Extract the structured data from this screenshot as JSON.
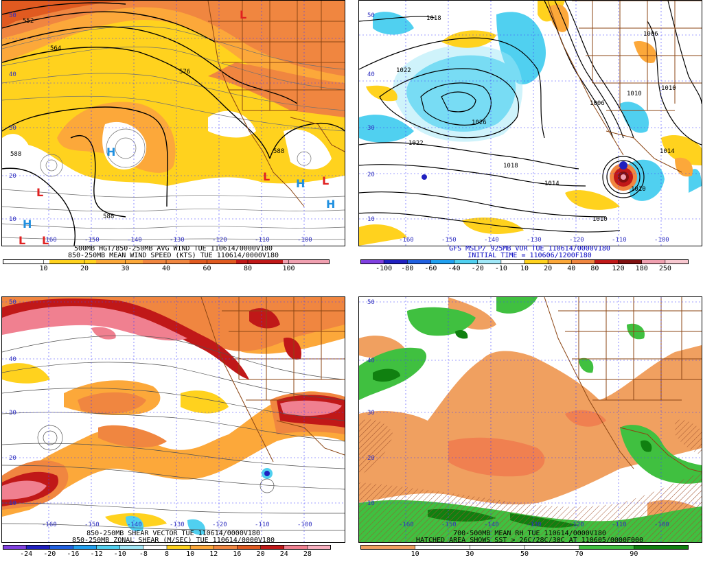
{
  "colors": {
    "grid": "#4040ff",
    "border": "#8b4513",
    "contour": "#000000"
  },
  "panels": [
    {
      "id": "tl",
      "lat_labels": [
        "50",
        "40",
        "30",
        "20",
        "10"
      ],
      "lon_labels": [
        "-160",
        "-150",
        "-140",
        "-130",
        "-120",
        "-110",
        "-100"
      ],
      "contour_labels": [
        "552",
        "564",
        "576",
        "588",
        "588",
        "588"
      ],
      "highs": [
        "H",
        "H",
        "H",
        "H"
      ],
      "lows": [
        "L",
        "L",
        "L",
        "L",
        "L",
        "L"
      ],
      "caption1": "500MB HGT/850-250MB AVG WIND  TUE 110614/0000V180",
      "caption2": "850-250MB MEAN WIND SPEED (KTS)  TUE 110614/0000V180",
      "colorbar": {
        "ticks": [
          "10",
          "20",
          "30",
          "40",
          "60",
          "80",
          "100"
        ],
        "colors": [
          "#ffffff",
          "#ffd21e",
          "#fca83a",
          "#f08640",
          "#e05a20",
          "#c01818",
          "#f0a0b0"
        ]
      }
    },
    {
      "id": "tr",
      "lat_labels": [
        "50",
        "40",
        "30",
        "20",
        "10"
      ],
      "lon_labels": [
        "-160",
        "-150",
        "-140",
        "-130",
        "-120",
        "-110",
        "-100"
      ],
      "contour_labels": [
        "1018",
        "1022",
        "1026",
        "1022",
        "1018",
        "1014",
        "1010",
        "1006",
        "1010",
        "1006",
        "1010",
        "1010",
        "1014"
      ],
      "caption1": "GFS MSLP/ 925MB VOR  TUE 110614/0000V180",
      "caption2": "INITIAL TIME = 110606/1200F180",
      "colorbar": {
        "ticks": [
          "-100",
          "-80",
          "-60",
          "-40",
          "-20",
          "-10",
          "10",
          "20",
          "40",
          "80",
          "120",
          "180",
          "250"
        ],
        "colors": [
          "#8040e0",
          "#2020c0",
          "#2060e0",
          "#20a0f0",
          "#50d0f0",
          "#a0e8f8",
          "#ffffff",
          "#ffd21e",
          "#fca83a",
          "#f08640",
          "#c01818",
          "#801010",
          "#f0a0b0",
          "#f8c8d0"
        ]
      }
    },
    {
      "id": "bl",
      "lat_labels": [
        "50",
        "40",
        "30",
        "20",
        "10"
      ],
      "lon_labels": [
        "-160",
        "-150",
        "-140",
        "-130",
        "-120",
        "-110",
        "-100"
      ],
      "caption1": "850-250MB SHEAR VECTOR  TUE 110614/0000V180",
      "caption2": "850-250MB ZONAL SHEAR (M/SEC)  TUE 110614/0000V180",
      "colorbar": {
        "ticks": [
          "-24",
          "-20",
          "-16",
          "-12",
          "-10",
          "-8",
          "8",
          "10",
          "12",
          "16",
          "20",
          "24",
          "28"
        ],
        "colors": [
          "#8040e0",
          "#2020c0",
          "#2060e0",
          "#20a0f0",
          "#50d0f0",
          "#a0e8f8",
          "#ffffff",
          "#ffd21e",
          "#fca83a",
          "#f08640",
          "#e05a20",
          "#c01818",
          "#f08090",
          "#f8b0c0"
        ]
      }
    },
    {
      "id": "br",
      "lat_labels": [
        "50",
        "40",
        "30",
        "20",
        "10"
      ],
      "lon_labels": [
        "-160",
        "-150",
        "-140",
        "-130",
        "-120",
        "-110",
        "-100"
      ],
      "caption1": "700-500MB MEAN RH  TUE 110614/0000V180",
      "caption2": "HATCHED AREA SHOWS SST > 26C/28C/30C AT 110605/0000F000",
      "colorbar": {
        "ticks": [
          "10",
          "30",
          "50",
          "70",
          "90"
        ],
        "colors": [
          "#f0a060",
          "#ffffff",
          "#ffffff",
          "#ffffff",
          "#40c040",
          "#108010"
        ]
      }
    }
  ]
}
